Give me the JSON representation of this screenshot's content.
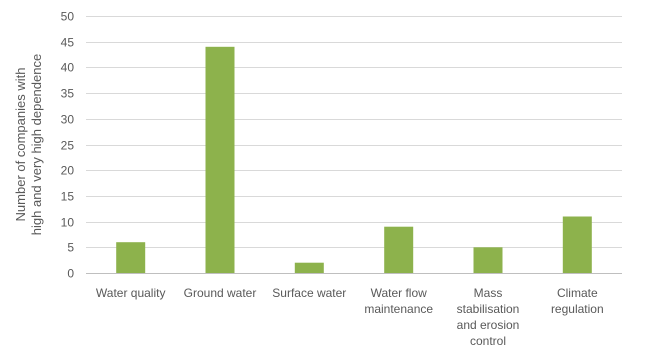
{
  "chart_data": {
    "type": "bar",
    "categories": [
      [
        "Water quality"
      ],
      [
        "Ground water"
      ],
      [
        "Surface water"
      ],
      [
        "Water flow",
        "maintenance"
      ],
      [
        "Mass",
        "stabilisation",
        "and erosion",
        "control"
      ],
      [
        "Climate",
        "regulation"
      ]
    ],
    "values": [
      6,
      44,
      2,
      9,
      5,
      11
    ],
    "title": "",
    "xlabel": "",
    "ylabel": [
      "Number of companies with",
      "high and very high dependence"
    ],
    "ylim": [
      0,
      50
    ],
    "yticks": [
      0,
      5,
      10,
      15,
      20,
      25,
      30,
      35,
      40,
      45,
      50
    ],
    "grid": true,
    "bar_color": "#8db24c"
  }
}
